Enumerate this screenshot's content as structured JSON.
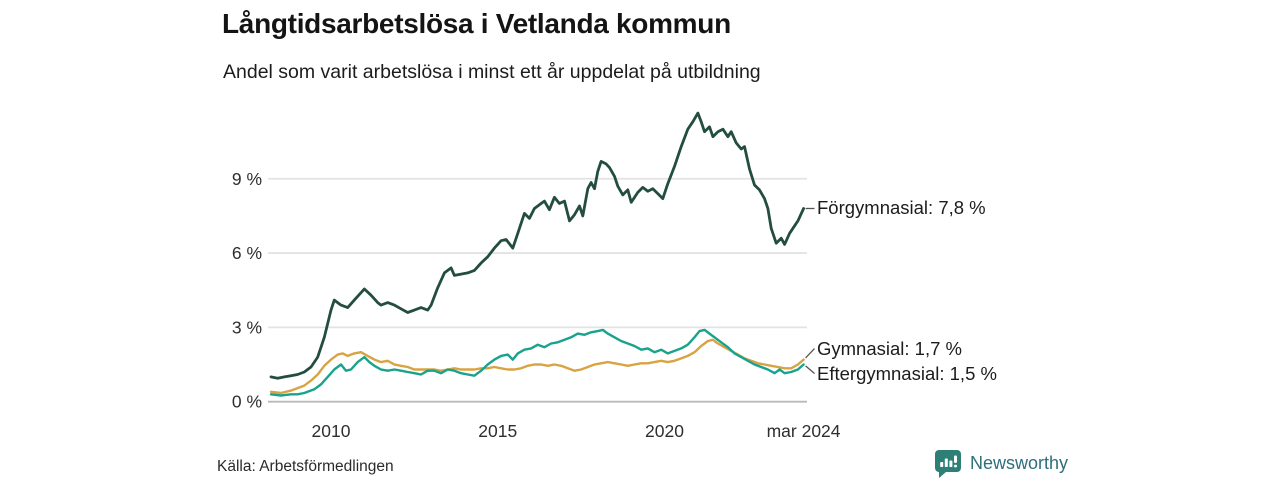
{
  "header": {
    "title": "Långtidsarbetslösa i Vetlanda kommun",
    "subtitle": "Andel som varit arbetslösa i minst ett år uppdelat på utbildning"
  },
  "chart_data": {
    "type": "line",
    "x_unit": "decimal_year",
    "xlim": [
      2008.1,
      2024.25
    ],
    "ylim": [
      0,
      12
    ],
    "grid": "horizontal",
    "legend_position": "end-of-line-labels",
    "yticks": [
      {
        "value": 0,
        "label": "0 %"
      },
      {
        "value": 3,
        "label": "3 %"
      },
      {
        "value": 6,
        "label": "6 %"
      },
      {
        "value": 9,
        "label": "9 %"
      }
    ],
    "xticks": [
      {
        "value": 2010,
        "label": "2010"
      },
      {
        "value": 2015,
        "label": "2015"
      },
      {
        "value": 2020,
        "label": "2020"
      },
      {
        "value": 2024.17,
        "label": "mar 2024"
      }
    ],
    "series": [
      {
        "name": "Förgymnasial",
        "end_label": "Förgymnasial: 7,8 %",
        "end_value": 7.8,
        "color": "#234d40",
        "points": [
          [
            2008.2,
            1.0
          ],
          [
            2008.4,
            0.95
          ],
          [
            2008.6,
            1.0
          ],
          [
            2008.8,
            1.05
          ],
          [
            2009.0,
            1.1
          ],
          [
            2009.2,
            1.2
          ],
          [
            2009.4,
            1.4
          ],
          [
            2009.6,
            1.8
          ],
          [
            2009.8,
            2.6
          ],
          [
            2010.0,
            3.7
          ],
          [
            2010.1,
            4.1
          ],
          [
            2010.3,
            3.9
          ],
          [
            2010.5,
            3.8
          ],
          [
            2010.7,
            4.1
          ],
          [
            2010.9,
            4.4
          ],
          [
            2011.0,
            4.55
          ],
          [
            2011.2,
            4.3
          ],
          [
            2011.4,
            4.0
          ],
          [
            2011.5,
            3.9
          ],
          [
            2011.7,
            4.0
          ],
          [
            2011.9,
            3.9
          ],
          [
            2012.1,
            3.75
          ],
          [
            2012.3,
            3.6
          ],
          [
            2012.5,
            3.7
          ],
          [
            2012.7,
            3.8
          ],
          [
            2012.9,
            3.7
          ],
          [
            2013.0,
            3.9
          ],
          [
            2013.2,
            4.6
          ],
          [
            2013.4,
            5.2
          ],
          [
            2013.6,
            5.4
          ],
          [
            2013.7,
            5.1
          ],
          [
            2013.9,
            5.15
          ],
          [
            2014.1,
            5.2
          ],
          [
            2014.3,
            5.3
          ],
          [
            2014.5,
            5.6
          ],
          [
            2014.7,
            5.85
          ],
          [
            2014.9,
            6.2
          ],
          [
            2015.1,
            6.5
          ],
          [
            2015.25,
            6.55
          ],
          [
            2015.45,
            6.2
          ],
          [
            2015.6,
            6.8
          ],
          [
            2015.8,
            7.6
          ],
          [
            2015.95,
            7.4
          ],
          [
            2016.1,
            7.8
          ],
          [
            2016.25,
            7.95
          ],
          [
            2016.4,
            8.1
          ],
          [
            2016.55,
            7.75
          ],
          [
            2016.7,
            8.25
          ],
          [
            2016.85,
            8.0
          ],
          [
            2017.0,
            8.1
          ],
          [
            2017.15,
            7.3
          ],
          [
            2017.3,
            7.55
          ],
          [
            2017.45,
            7.9
          ],
          [
            2017.55,
            7.5
          ],
          [
            2017.7,
            8.6
          ],
          [
            2017.8,
            8.85
          ],
          [
            2017.9,
            8.6
          ],
          [
            2018.0,
            9.3
          ],
          [
            2018.1,
            9.7
          ],
          [
            2018.25,
            9.6
          ],
          [
            2018.35,
            9.45
          ],
          [
            2018.5,
            9.1
          ],
          [
            2018.6,
            8.7
          ],
          [
            2018.75,
            8.35
          ],
          [
            2018.9,
            8.55
          ],
          [
            2019.0,
            8.05
          ],
          [
            2019.2,
            8.45
          ],
          [
            2019.35,
            8.65
          ],
          [
            2019.5,
            8.5
          ],
          [
            2019.65,
            8.6
          ],
          [
            2019.8,
            8.4
          ],
          [
            2019.95,
            8.2
          ],
          [
            2020.1,
            8.8
          ],
          [
            2020.3,
            9.5
          ],
          [
            2020.5,
            10.3
          ],
          [
            2020.7,
            11.0
          ],
          [
            2020.85,
            11.3
          ],
          [
            2021.0,
            11.65
          ],
          [
            2021.1,
            11.3
          ],
          [
            2021.2,
            10.9
          ],
          [
            2021.35,
            11.1
          ],
          [
            2021.45,
            10.7
          ],
          [
            2021.6,
            10.9
          ],
          [
            2021.75,
            11.0
          ],
          [
            2021.9,
            10.7
          ],
          [
            2022.0,
            10.9
          ],
          [
            2022.15,
            10.45
          ],
          [
            2022.3,
            10.2
          ],
          [
            2022.4,
            10.3
          ],
          [
            2022.55,
            9.4
          ],
          [
            2022.7,
            8.75
          ],
          [
            2022.85,
            8.55
          ],
          [
            2023.0,
            8.2
          ],
          [
            2023.1,
            7.8
          ],
          [
            2023.2,
            7.0
          ],
          [
            2023.35,
            6.4
          ],
          [
            2023.5,
            6.6
          ],
          [
            2023.6,
            6.35
          ],
          [
            2023.75,
            6.8
          ],
          [
            2023.9,
            7.1
          ],
          [
            2024.0,
            7.3
          ],
          [
            2024.17,
            7.8
          ]
        ]
      },
      {
        "name": "Gymnasial",
        "end_label": "Gymnasial: 1,7 %",
        "end_value": 1.7,
        "color": "#d8a342",
        "points": [
          [
            2008.2,
            0.4
          ],
          [
            2008.5,
            0.35
          ],
          [
            2008.8,
            0.45
          ],
          [
            2009.0,
            0.55
          ],
          [
            2009.2,
            0.65
          ],
          [
            2009.4,
            0.85
          ],
          [
            2009.6,
            1.1
          ],
          [
            2009.8,
            1.45
          ],
          [
            2010.0,
            1.7
          ],
          [
            2010.2,
            1.9
          ],
          [
            2010.35,
            1.95
          ],
          [
            2010.5,
            1.85
          ],
          [
            2010.7,
            1.95
          ],
          [
            2010.9,
            2.0
          ],
          [
            2011.1,
            1.85
          ],
          [
            2011.3,
            1.7
          ],
          [
            2011.5,
            1.6
          ],
          [
            2011.7,
            1.65
          ],
          [
            2011.9,
            1.5
          ],
          [
            2012.1,
            1.45
          ],
          [
            2012.3,
            1.4
          ],
          [
            2012.5,
            1.3
          ],
          [
            2012.7,
            1.3
          ],
          [
            2012.9,
            1.3
          ],
          [
            2013.1,
            1.3
          ],
          [
            2013.3,
            1.25
          ],
          [
            2013.5,
            1.3
          ],
          [
            2013.7,
            1.35
          ],
          [
            2013.9,
            1.3
          ],
          [
            2014.1,
            1.3
          ],
          [
            2014.3,
            1.3
          ],
          [
            2014.5,
            1.35
          ],
          [
            2014.7,
            1.35
          ],
          [
            2014.9,
            1.4
          ],
          [
            2015.1,
            1.35
          ],
          [
            2015.3,
            1.3
          ],
          [
            2015.5,
            1.3
          ],
          [
            2015.7,
            1.35
          ],
          [
            2015.9,
            1.45
          ],
          [
            2016.1,
            1.5
          ],
          [
            2016.3,
            1.5
          ],
          [
            2016.5,
            1.45
          ],
          [
            2016.7,
            1.5
          ],
          [
            2016.9,
            1.45
          ],
          [
            2017.1,
            1.35
          ],
          [
            2017.3,
            1.25
          ],
          [
            2017.5,
            1.3
          ],
          [
            2017.7,
            1.4
          ],
          [
            2017.9,
            1.5
          ],
          [
            2018.1,
            1.55
          ],
          [
            2018.3,
            1.6
          ],
          [
            2018.5,
            1.55
          ],
          [
            2018.7,
            1.5
          ],
          [
            2018.9,
            1.45
          ],
          [
            2019.1,
            1.5
          ],
          [
            2019.3,
            1.55
          ],
          [
            2019.5,
            1.55
          ],
          [
            2019.7,
            1.6
          ],
          [
            2019.9,
            1.65
          ],
          [
            2020.1,
            1.6
          ],
          [
            2020.3,
            1.65
          ],
          [
            2020.5,
            1.75
          ],
          [
            2020.7,
            1.85
          ],
          [
            2020.9,
            2.0
          ],
          [
            2021.1,
            2.25
          ],
          [
            2021.3,
            2.45
          ],
          [
            2021.45,
            2.5
          ],
          [
            2021.6,
            2.35
          ],
          [
            2021.8,
            2.2
          ],
          [
            2022.0,
            2.05
          ],
          [
            2022.2,
            1.9
          ],
          [
            2022.4,
            1.75
          ],
          [
            2022.6,
            1.65
          ],
          [
            2022.8,
            1.55
          ],
          [
            2023.0,
            1.5
          ],
          [
            2023.2,
            1.45
          ],
          [
            2023.4,
            1.4
          ],
          [
            2023.6,
            1.35
          ],
          [
            2023.8,
            1.35
          ],
          [
            2024.0,
            1.5
          ],
          [
            2024.17,
            1.7
          ]
        ]
      },
      {
        "name": "Eftergymnasial",
        "end_label": "Eftergymnasial: 1,5 %",
        "end_value": 1.5,
        "color": "#19a28c",
        "points": [
          [
            2008.2,
            0.3
          ],
          [
            2008.5,
            0.25
          ],
          [
            2008.8,
            0.3
          ],
          [
            2009.0,
            0.3
          ],
          [
            2009.2,
            0.35
          ],
          [
            2009.5,
            0.5
          ],
          [
            2009.7,
            0.7
          ],
          [
            2009.9,
            1.0
          ],
          [
            2010.1,
            1.3
          ],
          [
            2010.3,
            1.5
          ],
          [
            2010.45,
            1.25
          ],
          [
            2010.6,
            1.3
          ],
          [
            2010.8,
            1.6
          ],
          [
            2011.0,
            1.8
          ],
          [
            2011.15,
            1.6
          ],
          [
            2011.3,
            1.45
          ],
          [
            2011.5,
            1.3
          ],
          [
            2011.7,
            1.25
          ],
          [
            2011.9,
            1.3
          ],
          [
            2012.1,
            1.25
          ],
          [
            2012.3,
            1.2
          ],
          [
            2012.5,
            1.15
          ],
          [
            2012.7,
            1.1
          ],
          [
            2012.9,
            1.25
          ],
          [
            2013.1,
            1.25
          ],
          [
            2013.3,
            1.15
          ],
          [
            2013.5,
            1.3
          ],
          [
            2013.7,
            1.25
          ],
          [
            2013.9,
            1.15
          ],
          [
            2014.1,
            1.1
          ],
          [
            2014.3,
            1.05
          ],
          [
            2014.5,
            1.25
          ],
          [
            2014.7,
            1.5
          ],
          [
            2014.9,
            1.7
          ],
          [
            2015.1,
            1.85
          ],
          [
            2015.3,
            1.9
          ],
          [
            2015.45,
            1.7
          ],
          [
            2015.6,
            1.95
          ],
          [
            2015.8,
            2.1
          ],
          [
            2016.0,
            2.15
          ],
          [
            2016.2,
            2.3
          ],
          [
            2016.4,
            2.2
          ],
          [
            2016.6,
            2.35
          ],
          [
            2016.8,
            2.4
          ],
          [
            2017.0,
            2.5
          ],
          [
            2017.2,
            2.6
          ],
          [
            2017.4,
            2.75
          ],
          [
            2017.6,
            2.7
          ],
          [
            2017.8,
            2.8
          ],
          [
            2018.0,
            2.85
          ],
          [
            2018.15,
            2.9
          ],
          [
            2018.3,
            2.75
          ],
          [
            2018.5,
            2.6
          ],
          [
            2018.7,
            2.45
          ],
          [
            2018.9,
            2.35
          ],
          [
            2019.1,
            2.25
          ],
          [
            2019.3,
            2.1
          ],
          [
            2019.5,
            2.15
          ],
          [
            2019.7,
            2.0
          ],
          [
            2019.9,
            2.1
          ],
          [
            2020.1,
            1.95
          ],
          [
            2020.3,
            2.05
          ],
          [
            2020.5,
            2.15
          ],
          [
            2020.7,
            2.3
          ],
          [
            2020.9,
            2.6
          ],
          [
            2021.05,
            2.85
          ],
          [
            2021.2,
            2.9
          ],
          [
            2021.35,
            2.75
          ],
          [
            2021.5,
            2.6
          ],
          [
            2021.7,
            2.4
          ],
          [
            2021.9,
            2.2
          ],
          [
            2022.1,
            1.95
          ],
          [
            2022.3,
            1.8
          ],
          [
            2022.5,
            1.65
          ],
          [
            2022.7,
            1.5
          ],
          [
            2022.9,
            1.4
          ],
          [
            2023.1,
            1.3
          ],
          [
            2023.3,
            1.15
          ],
          [
            2023.45,
            1.3
          ],
          [
            2023.6,
            1.15
          ],
          [
            2023.8,
            1.2
          ],
          [
            2024.0,
            1.3
          ],
          [
            2024.17,
            1.5
          ]
        ]
      }
    ]
  },
  "footer": {
    "source": "Källa: Arbetsförmedlingen",
    "brand": "Newsworthy"
  },
  "colors": {
    "forgymnasial": "#234d40",
    "gymnasial": "#d8a342",
    "eftergymnasial": "#19a28c",
    "gridline": "#e3e3e3",
    "zero_line": "#b9b9b9",
    "connector": "#555555",
    "brand_icon": "#2e8076",
    "brand_text": "#2d6f7a"
  }
}
